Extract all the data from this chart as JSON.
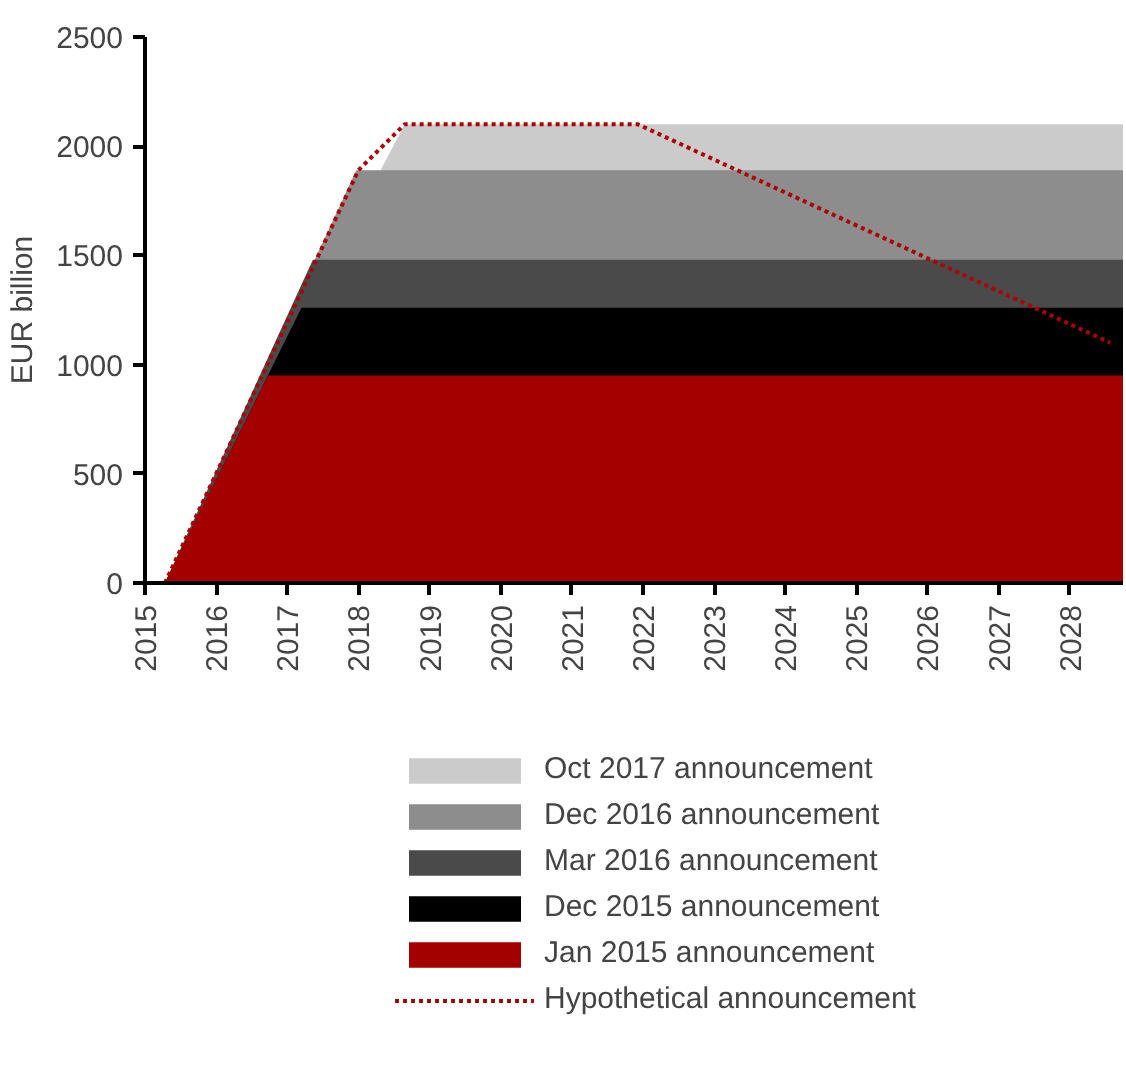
{
  "chart_data": {
    "type": "area",
    "ylabel": "EUR billion",
    "xlim": [
      2015,
      2028.75
    ],
    "xticks": [
      2015,
      2016,
      2017,
      2018,
      2019,
      2020,
      2021,
      2022,
      2023,
      2024,
      2025,
      2026,
      2027,
      2028
    ],
    "ylim": [
      0,
      2500
    ],
    "yticks": [
      0,
      500,
      1000,
      1500,
      2000,
      2500
    ],
    "grid": false,
    "legend": "bottom",
    "series": [
      {
        "name": "Oct 2017 announcement",
        "color": "#cbcbcb",
        "x": [
          2015.28,
          2018.65,
          2028.75
        ],
        "values": [
          0,
          2100,
          2100
        ]
      },
      {
        "name": "Dec 2016 announcement",
        "color": "#8d8d8d",
        "x": [
          2015.28,
          2017.97,
          2028.75
        ],
        "values": [
          0,
          1890,
          1890
        ]
      },
      {
        "name": "Mar 2016 announcement",
        "color": "#4a4a4a",
        "x": [
          2015.28,
          2017.36,
          2028.75
        ],
        "values": [
          0,
          1480,
          1480
        ]
      },
      {
        "name": "Dec 2015 announcement",
        "color": "#000000",
        "x": [
          2015.28,
          2017.2,
          2028.75
        ],
        "values": [
          0,
          1260,
          1260
        ]
      },
      {
        "name": "Jan 2015 announcement",
        "color": "#a50000",
        "x": [
          2015.28,
          2016.73,
          2028.75
        ],
        "values": [
          0,
          950,
          950
        ]
      },
      {
        "name": "Hypothetical announcement",
        "type": "line",
        "line_style": "dotted",
        "color": "#b00000",
        "x": [
          2015.28,
          2018.0,
          2018.65,
          2021.93,
          2028.57
        ],
        "values": [
          0,
          1890,
          2100,
          2100,
          1100
        ]
      }
    ]
  }
}
